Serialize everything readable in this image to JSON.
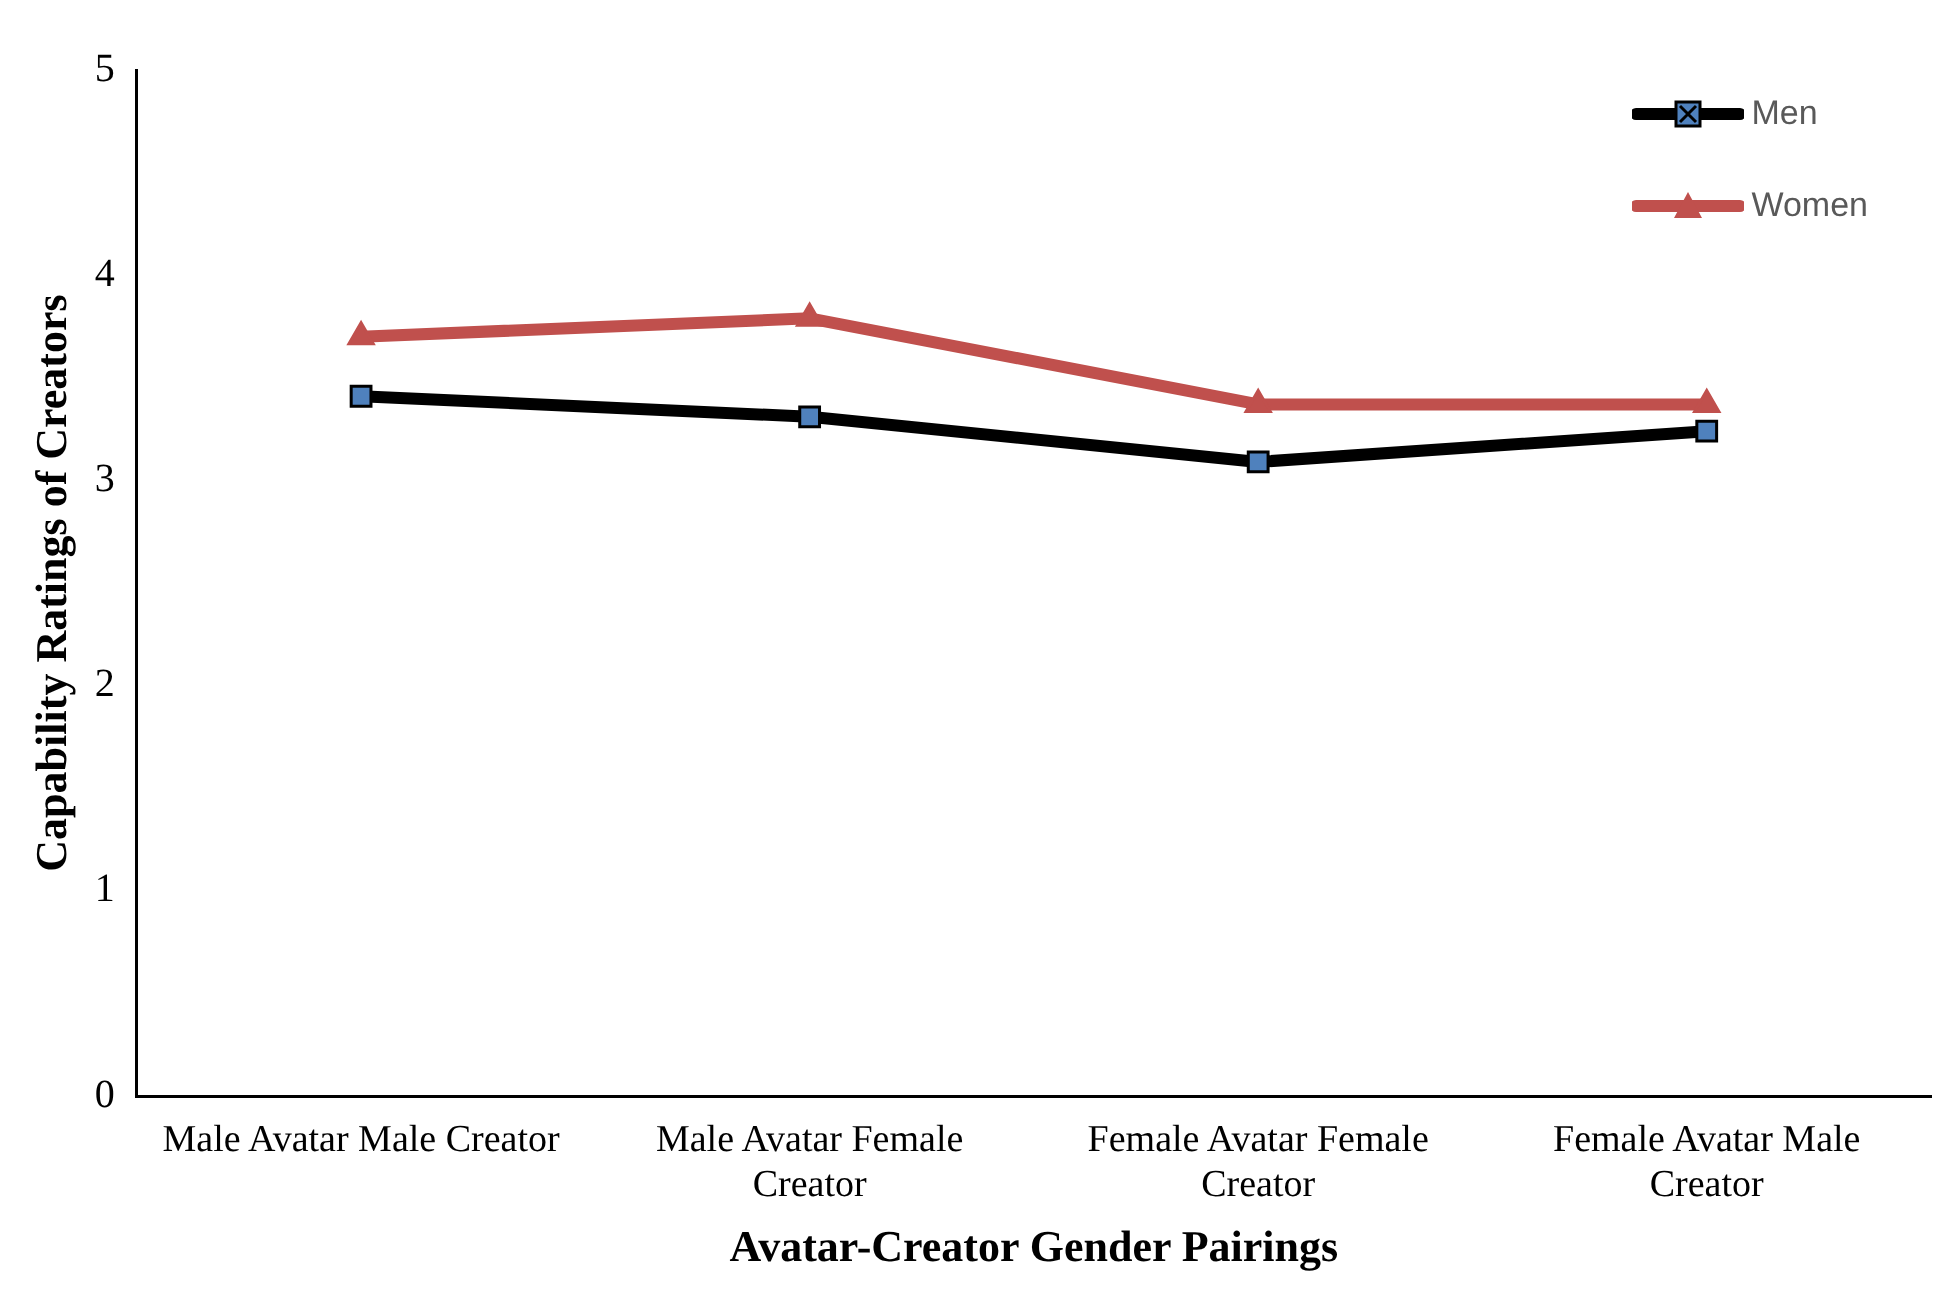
{
  "chart_data": {
    "type": "line",
    "xlabel": "Avatar-Creator Gender Pairings",
    "ylabel": "Capability Ratings of Creators",
    "categories": [
      "Male Avatar Male Creator",
      "Male Avatar Female Creator",
      "Female Avatar Female Creator",
      "Female Avatar Male Creator"
    ],
    "series": [
      {
        "name": "Men",
        "color": "#000000",
        "marker": "square",
        "values": [
          3.41,
          3.31,
          3.09,
          3.24
        ]
      },
      {
        "name": "Women",
        "color": "#c0504d",
        "marker": "triangle",
        "values": [
          3.7,
          3.79,
          3.37,
          3.37
        ]
      }
    ],
    "ylim": [
      0,
      5
    ],
    "yticks": [
      0,
      1,
      2,
      3,
      4,
      5
    ],
    "grid": false,
    "legend": "top right",
    "line_style": "solid"
  }
}
